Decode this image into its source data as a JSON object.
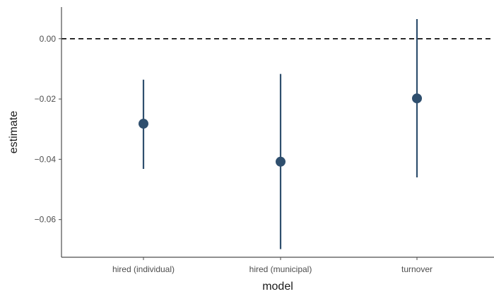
{
  "chart_data": {
    "type": "scatter",
    "subtype": "point-range",
    "xlabel": "model",
    "ylabel": "estimate",
    "categories": [
      "hired (individual)",
      "hired (municipal)",
      "turnover"
    ],
    "points": [
      {
        "category": "hired (individual)",
        "estimate": -0.0282,
        "lower": -0.0432,
        "upper": -0.0136
      },
      {
        "category": "hired (municipal)",
        "estimate": -0.0408,
        "lower": -0.0698,
        "upper": -0.0117
      },
      {
        "category": "turnover",
        "estimate": -0.0198,
        "lower": -0.046,
        "upper": 0.0065
      }
    ],
    "ylim": [
      -0.0725,
      0.0105
    ],
    "yticks": [
      0.0,
      -0.02,
      -0.04,
      -0.06
    ],
    "ytick_labels": [
      "0.00",
      "−0.02",
      "−0.04",
      "−0.06"
    ],
    "reference_line": {
      "y": 0,
      "style": "dashed"
    },
    "grid": false,
    "legend": "none",
    "colors": {
      "series": "#2f4f6e",
      "reference": "#000000",
      "axis": "#4d4d4d"
    }
  }
}
